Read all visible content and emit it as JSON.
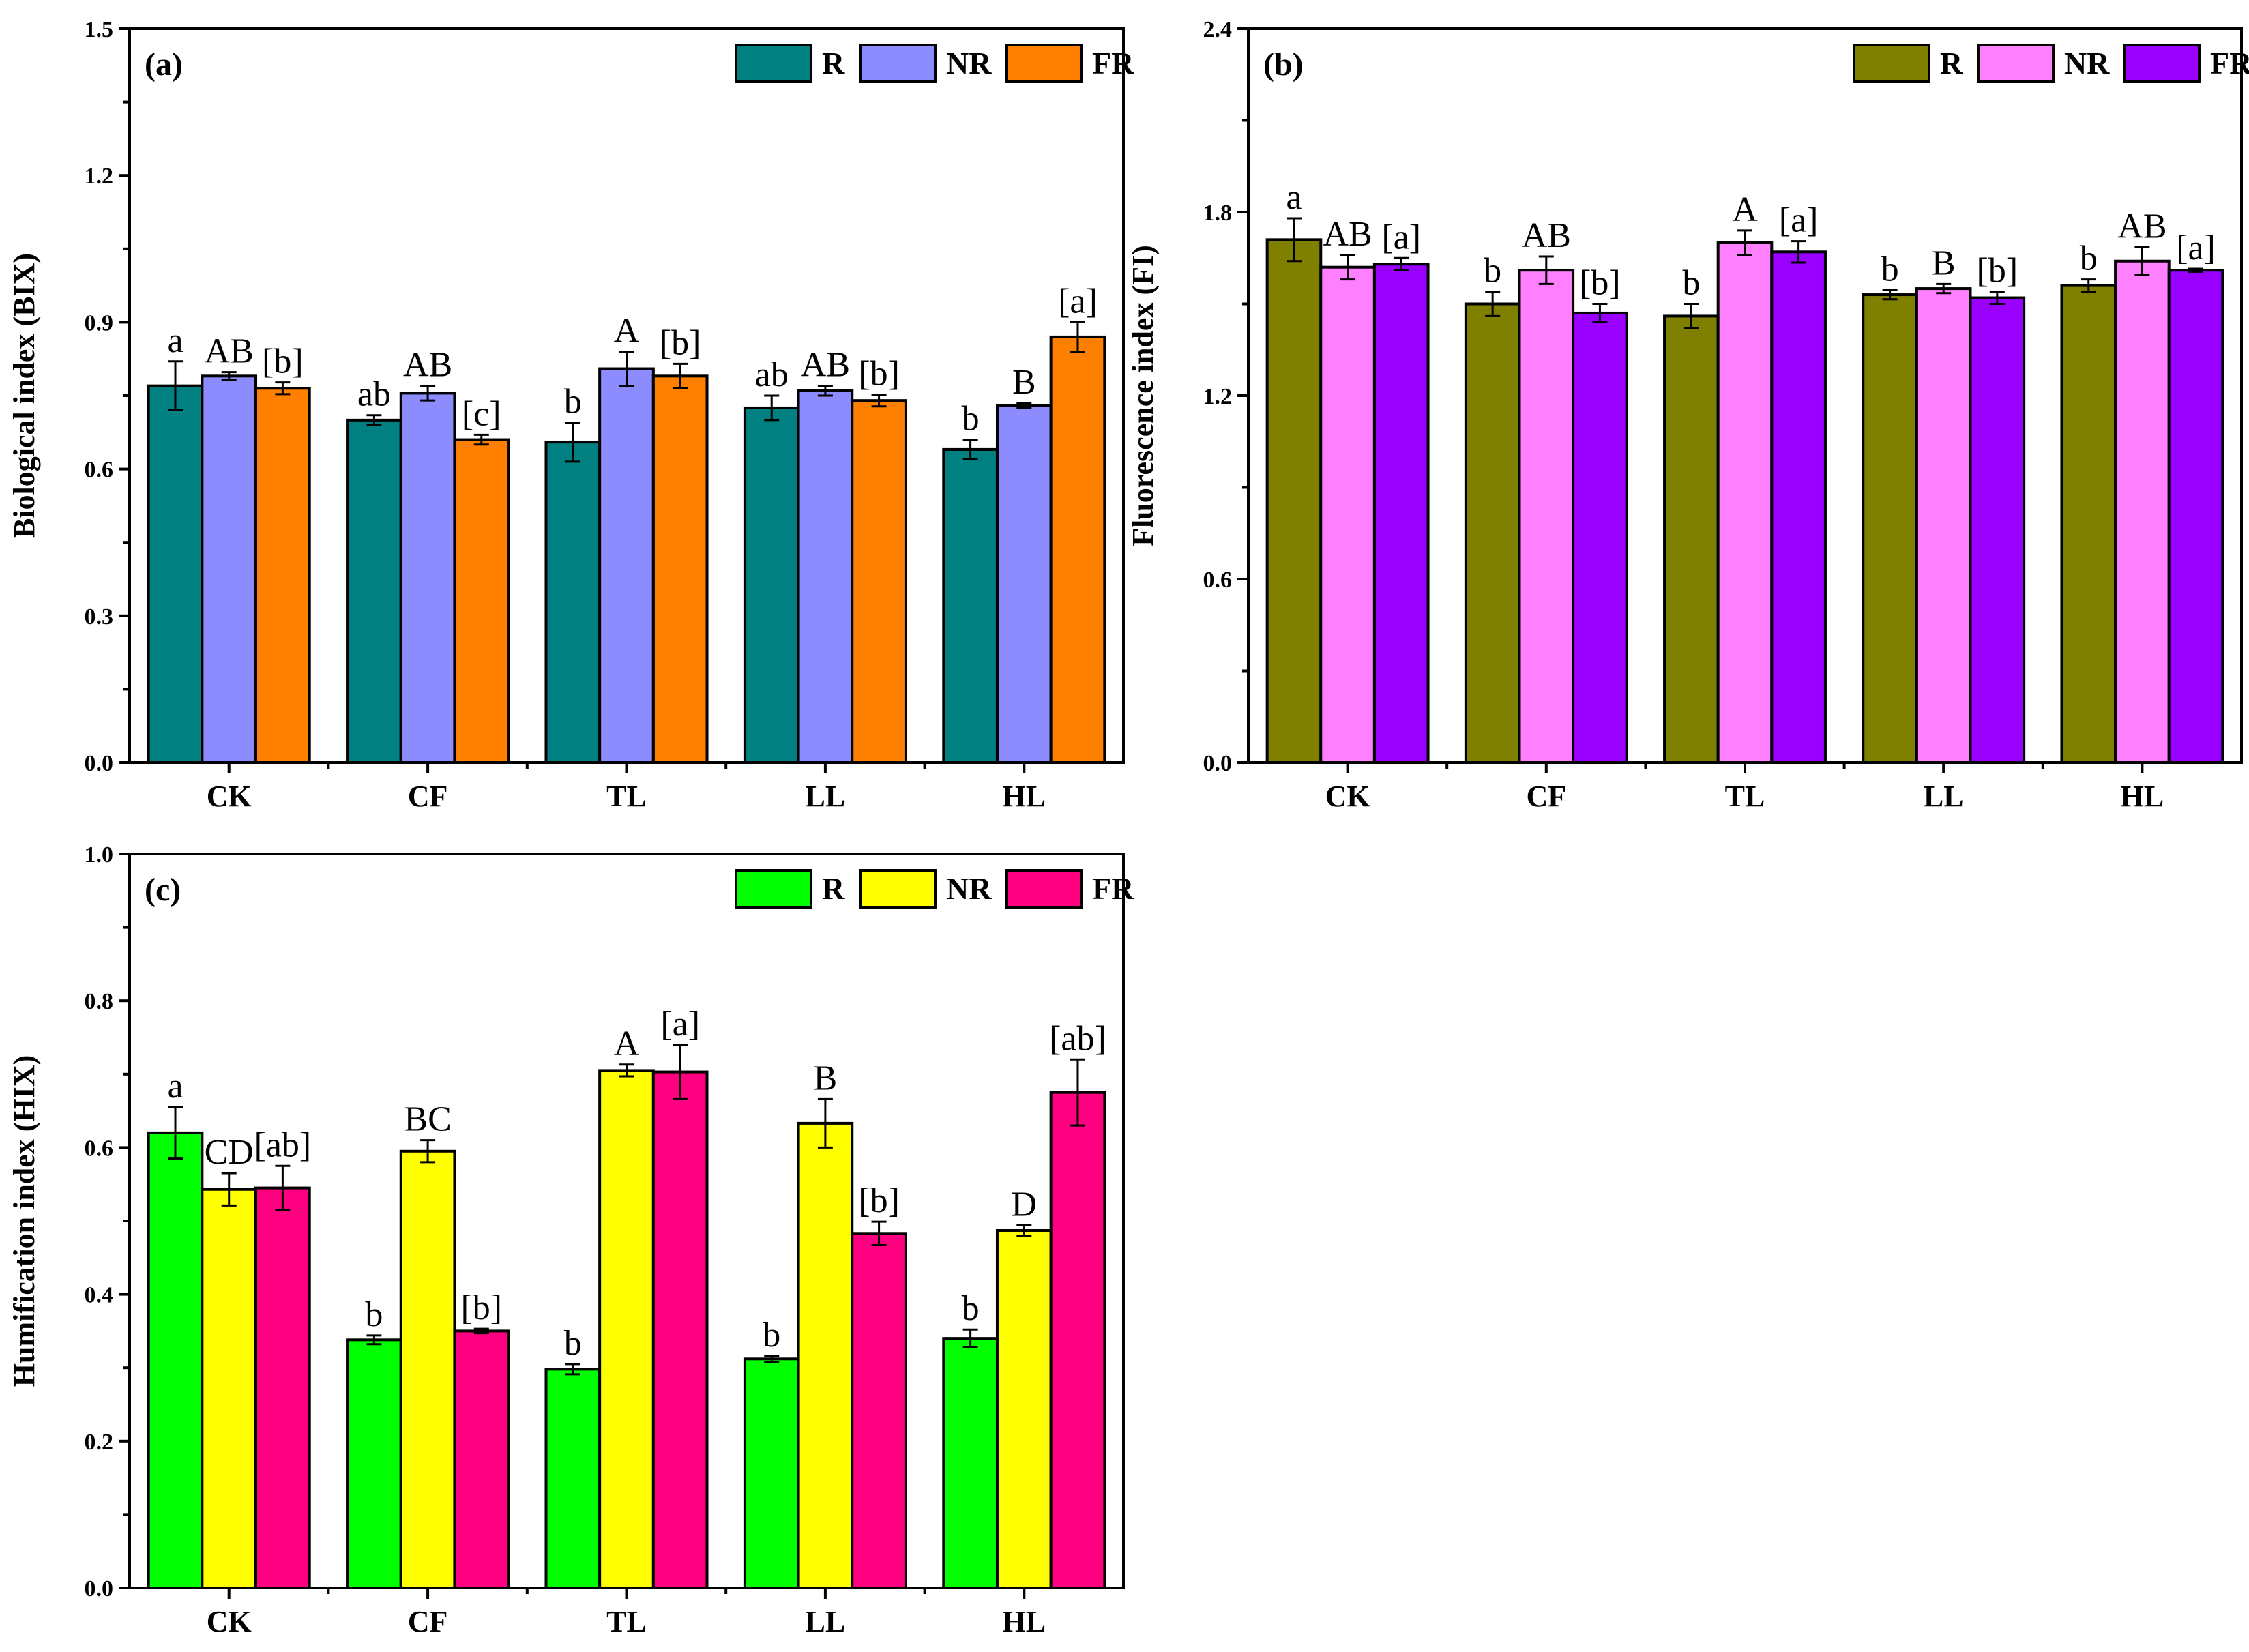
{
  "chart_data": [
    {
      "type": "bar",
      "panel_label": "(a)",
      "ylabel": "Biological index (BIX)",
      "ylim": [
        0,
        1.5
      ],
      "yticks": [
        "0.0",
        "0.3",
        "0.6",
        "0.9",
        "1.2",
        "1.5"
      ],
      "categories": [
        "CK",
        "CF",
        "TL",
        "LL",
        "HL"
      ],
      "legend_position": "top-right",
      "series": [
        {
          "name": "R",
          "color": "#008080",
          "values": [
            0.77,
            0.7,
            0.655,
            0.725,
            0.64
          ],
          "errors": [
            0.05,
            0.01,
            0.04,
            0.025,
            0.02
          ],
          "labels": [
            "a",
            "ab",
            "b",
            "ab",
            "b"
          ]
        },
        {
          "name": "NR",
          "color": "#8C8CFF",
          "values": [
            0.79,
            0.755,
            0.805,
            0.76,
            0.73
          ],
          "errors": [
            0.008,
            0.015,
            0.035,
            0.01,
            0.005
          ],
          "labels": [
            "AB",
            "AB",
            "A",
            "AB",
            "B"
          ]
        },
        {
          "name": "FR",
          "color": "#FF8000",
          "values": [
            0.765,
            0.66,
            0.79,
            0.74,
            0.87
          ],
          "errors": [
            0.012,
            0.01,
            0.025,
            0.012,
            0.03
          ],
          "labels": [
            "[b]",
            "[c]",
            "[b]",
            "[b]",
            "[a]"
          ]
        }
      ]
    },
    {
      "type": "bar",
      "panel_label": "(b)",
      "ylabel": "Fluorescence index (FI)",
      "ylim": [
        0,
        2.4
      ],
      "yticks": [
        "0.0",
        "0.6",
        "1.2",
        "1.8",
        "2.4"
      ],
      "categories": [
        "CK",
        "CF",
        "TL",
        "LL",
        "HL"
      ],
      "legend_position": "top-right",
      "series": [
        {
          "name": "R",
          "color": "#808000",
          "values": [
            1.71,
            1.5,
            1.46,
            1.53,
            1.56
          ],
          "errors": [
            0.07,
            0.04,
            0.04,
            0.015,
            0.02
          ],
          "labels": [
            "a",
            "b",
            "b",
            "b",
            "b"
          ]
        },
        {
          "name": "NR",
          "color": "#FF80FF",
          "values": [
            1.62,
            1.61,
            1.7,
            1.55,
            1.64
          ],
          "errors": [
            0.04,
            0.045,
            0.04,
            0.015,
            0.045
          ],
          "labels": [
            "AB",
            "AB",
            "A",
            "B",
            "AB"
          ]
        },
        {
          "name": "FR",
          "color": "#9900FF",
          "values": [
            1.63,
            1.47,
            1.67,
            1.52,
            1.61
          ],
          "errors": [
            0.02,
            0.03,
            0.035,
            0.02,
            0.005
          ],
          "labels": [
            "[a]",
            "[b]",
            "[a]",
            "[b]",
            "[a]"
          ]
        }
      ]
    },
    {
      "type": "bar",
      "panel_label": "(c)",
      "ylabel": "Humification index (HIX)",
      "ylim": [
        0,
        1.0
      ],
      "yticks": [
        "0.0",
        "0.2",
        "0.4",
        "0.6",
        "0.8",
        "1.0"
      ],
      "categories": [
        "CK",
        "CF",
        "TL",
        "LL",
        "HL"
      ],
      "legend_position": "top-right",
      "series": [
        {
          "name": "R",
          "color": "#00FF00",
          "values": [
            0.62,
            0.338,
            0.298,
            0.312,
            0.34
          ],
          "errors": [
            0.035,
            0.006,
            0.007,
            0.004,
            0.012
          ],
          "labels": [
            "a",
            "b",
            "b",
            "b",
            "b"
          ]
        },
        {
          "name": "NR",
          "color": "#FFFF00",
          "values": [
            0.543,
            0.595,
            0.705,
            0.633,
            0.487
          ],
          "errors": [
            0.022,
            0.015,
            0.008,
            0.033,
            0.007
          ],
          "labels": [
            "CD",
            "BC",
            "A",
            "B",
            "D"
          ]
        },
        {
          "name": "FR",
          "color": "#FF0080",
          "values": [
            0.545,
            0.35,
            0.703,
            0.483,
            0.675
          ],
          "errors": [
            0.03,
            0.003,
            0.037,
            0.016,
            0.045
          ],
          "labels": [
            "[ab]",
            "[b]",
            "[a]",
            "[b]",
            "[ab]"
          ]
        }
      ]
    }
  ]
}
